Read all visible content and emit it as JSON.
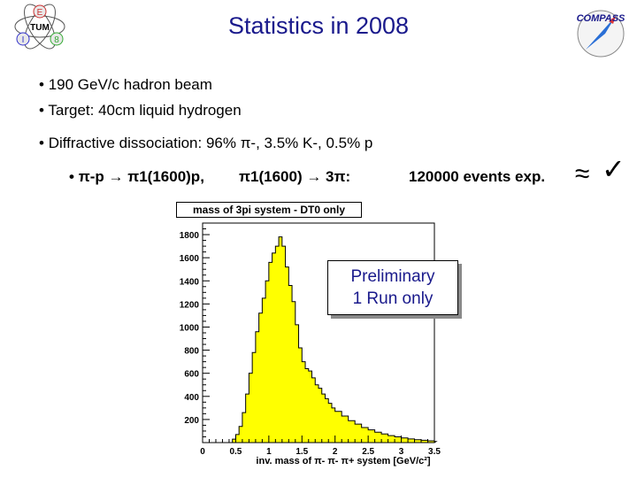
{
  "title": "Statistics in 2008",
  "logos": {
    "tum_letters": [
      "E",
      "TUM",
      "I",
      "8"
    ],
    "compass": "COMPASS"
  },
  "bullets": [
    {
      "marker": "•",
      "text": "190 GeV/c hadron beam"
    },
    {
      "marker": "•",
      "text": "Target: 40cm liquid hydrogen"
    },
    {
      "marker": "•",
      "text": "Diffractive dissociation: 96% π-, 3.5% K-, 0.5% p"
    }
  ],
  "sub_bullet": {
    "marker": "•",
    "reaction": "π-p → π1(1600)p,",
    "decay": "π1(1600) → 3π:",
    "events": "120000 events exp.",
    "approx": "≈",
    "check": "✓"
  },
  "overlay": {
    "line1": "Preliminary",
    "line2": "1 Run only"
  },
  "colors": {
    "title": "#1a1a8c",
    "fill": "#ffff00",
    "shadow": "#8a8a8a"
  },
  "chart_data": {
    "type": "histogram",
    "title": "mass of 3pi system - DT0 only",
    "xlabel": "inv. mass of π- π- π+ system [GeV/c²]",
    "ylabel": "",
    "xlim": [
      0,
      3.5
    ],
    "ylim": [
      0,
      1900
    ],
    "xticks": [
      "0",
      "0.5",
      "1",
      "1.5",
      "2",
      "2.5",
      "3",
      "3.5"
    ],
    "yticks": [
      "200",
      "400",
      "600",
      "800",
      "1000",
      "1200",
      "1400",
      "1600",
      "1800"
    ],
    "x": [
      0.4,
      0.45,
      0.5,
      0.55,
      0.6,
      0.65,
      0.7,
      0.75,
      0.8,
      0.85,
      0.9,
      0.95,
      1.0,
      1.05,
      1.1,
      1.15,
      1.2,
      1.25,
      1.3,
      1.35,
      1.4,
      1.45,
      1.5,
      1.55,
      1.6,
      1.65,
      1.7,
      1.75,
      1.8,
      1.85,
      1.9,
      1.95,
      2.0,
      2.1,
      2.2,
      2.3,
      2.4,
      2.5,
      2.6,
      2.7,
      2.8,
      2.9,
      3.0,
      3.1,
      3.2,
      3.3,
      3.4,
      3.5
    ],
    "values": [
      0,
      30,
      70,
      140,
      260,
      420,
      600,
      780,
      960,
      1120,
      1250,
      1400,
      1560,
      1640,
      1700,
      1780,
      1700,
      1520,
      1360,
      1220,
      1020,
      820,
      700,
      640,
      620,
      560,
      500,
      470,
      420,
      380,
      340,
      300,
      270,
      230,
      190,
      160,
      130,
      110,
      90,
      75,
      60,
      50,
      40,
      32,
      25,
      20,
      15,
      10
    ]
  }
}
